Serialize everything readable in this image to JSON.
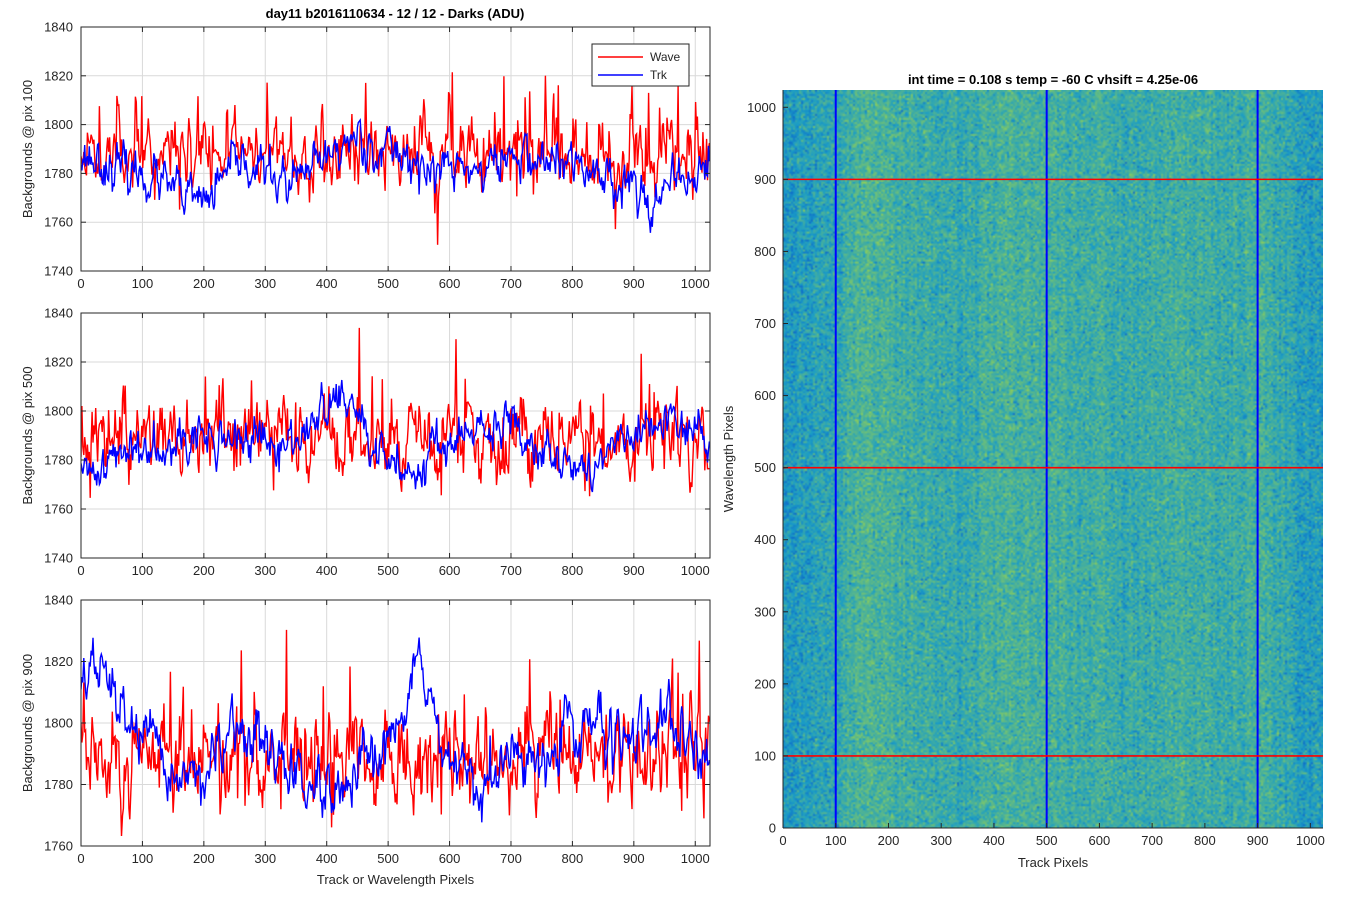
{
  "chart_data": [
    {
      "type": "line",
      "title": "day11 b2016110634 - 12 / 12 - Darks (ADU)",
      "xlabel": "",
      "ylabel": "Backgrounds @ pix 100",
      "xlim": [
        0,
        1024
      ],
      "ylim": [
        1740,
        1840
      ],
      "xticks": [
        "0",
        "100",
        "200",
        "300",
        "400",
        "500",
        "600",
        "700",
        "800",
        "900",
        "1000"
      ],
      "yticks": [
        "1740",
        "1760",
        "1780",
        "1800",
        "1820",
        "1840"
      ],
      "grid": true,
      "legend": {
        "location": "top-right",
        "entries": [
          "Wave",
          "Trk"
        ]
      },
      "series": [
        {
          "name": "Wave",
          "color": "#ff0000",
          "mean": 1789,
          "noise": 7,
          "spikes": 3,
          "seed": 11,
          "anchors": [
            [
              0,
              1789
            ],
            [
              1024,
              1789
            ]
          ]
        },
        {
          "name": "Trk",
          "color": "#0000ff",
          "mean": 1783,
          "noise": 4,
          "spikes": 0,
          "seed": 23,
          "anchors": [
            [
              0,
              1788
            ],
            [
              60,
              1782
            ],
            [
              120,
              1778
            ],
            [
              170,
              1770
            ],
            [
              200,
              1768
            ],
            [
              260,
              1785
            ],
            [
              300,
              1781
            ],
            [
              340,
              1775
            ],
            [
              380,
              1782
            ],
            [
              420,
              1790
            ],
            [
              450,
              1796
            ],
            [
              480,
              1790
            ],
            [
              530,
              1788
            ],
            [
              560,
              1780
            ],
            [
              600,
              1783
            ],
            [
              650,
              1781
            ],
            [
              700,
              1787
            ],
            [
              760,
              1785
            ],
            [
              820,
              1782
            ],
            [
              860,
              1779
            ],
            [
              900,
              1775
            ],
            [
              940,
              1768
            ],
            [
              980,
              1778
            ],
            [
              1024,
              1782
            ]
          ]
        }
      ]
    },
    {
      "type": "line",
      "title": "",
      "xlabel": "",
      "ylabel": "Backgrounds @ pix 500",
      "xlim": [
        0,
        1024
      ],
      "ylim": [
        1740,
        1840
      ],
      "xticks": [
        "0",
        "100",
        "200",
        "300",
        "400",
        "500",
        "600",
        "700",
        "800",
        "900",
        "1000"
      ],
      "yticks": [
        "1740",
        "1760",
        "1780",
        "1800",
        "1820",
        "1840"
      ],
      "grid": true,
      "series": [
        {
          "name": "",
          "color": "#ff0000",
          "mean": 1789,
          "noise": 7,
          "spikes": 3,
          "seed": 37,
          "anchors": [
            [
              0,
              1789
            ],
            [
              1024,
              1789
            ]
          ]
        },
        {
          "name": "",
          "color": "#0000ff",
          "mean": 1785,
          "noise": 4,
          "spikes": 0,
          "seed": 41,
          "anchors": [
            [
              0,
              1772
            ],
            [
              30,
              1778
            ],
            [
              80,
              1784
            ],
            [
              150,
              1790
            ],
            [
              200,
              1788
            ],
            [
              280,
              1789
            ],
            [
              320,
              1782
            ],
            [
              360,
              1792
            ],
            [
              420,
              1805
            ],
            [
              450,
              1800
            ],
            [
              480,
              1780
            ],
            [
              540,
              1776
            ],
            [
              580,
              1787
            ],
            [
              650,
              1790
            ],
            [
              700,
              1794
            ],
            [
              760,
              1786
            ],
            [
              800,
              1774
            ],
            [
              840,
              1780
            ],
            [
              900,
              1790
            ],
            [
              960,
              1794
            ],
            [
              1024,
              1790
            ]
          ]
        }
      ]
    },
    {
      "type": "line",
      "title": "",
      "xlabel": "Track or Wavelength Pixels",
      "ylabel": "Backgrounds @ pix 900",
      "xlim": [
        0,
        1024
      ],
      "ylim": [
        1760,
        1840
      ],
      "xticks": [
        "0",
        "100",
        "200",
        "300",
        "400",
        "500",
        "600",
        "700",
        "800",
        "900",
        "1000"
      ],
      "yticks": [
        "1760",
        "1780",
        "1800",
        "1820",
        "1840"
      ],
      "grid": true,
      "series": [
        {
          "name": "",
          "color": "#ff0000",
          "mean": 1790,
          "noise": 7,
          "spikes": 3,
          "seed": 53,
          "anchors": [
            [
              0,
              1790
            ],
            [
              1024,
              1790
            ]
          ]
        },
        {
          "name": "",
          "color": "#0000ff",
          "mean": 1790,
          "noise": 4,
          "spikes": 0,
          "seed": 67,
          "anchors": [
            [
              0,
              1815
            ],
            [
              30,
              1818
            ],
            [
              60,
              1806
            ],
            [
              100,
              1796
            ],
            [
              130,
              1786
            ],
            [
              170,
              1782
            ],
            [
              220,
              1786
            ],
            [
              250,
              1797
            ],
            [
              290,
              1795
            ],
            [
              330,
              1786
            ],
            [
              380,
              1778
            ],
            [
              410,
              1772
            ],
            [
              450,
              1782
            ],
            [
              490,
              1788
            ],
            [
              520,
              1800
            ],
            [
              545,
              1826
            ],
            [
              560,
              1812
            ],
            [
              590,
              1788
            ],
            [
              640,
              1778
            ],
            [
              690,
              1786
            ],
            [
              740,
              1789
            ],
            [
              800,
              1798
            ],
            [
              850,
              1800
            ],
            [
              900,
              1794
            ],
            [
              950,
              1798
            ],
            [
              1000,
              1792
            ],
            [
              1024,
              1786
            ]
          ]
        }
      ]
    },
    {
      "type": "heatmap",
      "title": "int time = 0.108 s   temp = -60 C   vhsift = 4.25e-06",
      "xlabel": "Track Pixels",
      "ylabel": "Wavelength Pixels",
      "xlim": [
        0,
        1024
      ],
      "ylim": [
        0,
        1024
      ],
      "xticks": [
        "0",
        "100",
        "200",
        "300",
        "400",
        "500",
        "600",
        "700",
        "800",
        "900",
        "1000"
      ],
      "yticks": [
        "0",
        "100",
        "200",
        "300",
        "400",
        "500",
        "600",
        "700",
        "800",
        "900",
        "1000"
      ],
      "colormap": "parula",
      "base_color": "#1a9cc7",
      "high_color": "#8ccd5c",
      "vertical_markers": {
        "x": [
          100,
          500,
          900
        ],
        "color": "#0000ff"
      },
      "horizontal_markers": {
        "y": [
          100,
          500,
          900
        ],
        "color": "#ff0000"
      }
    }
  ]
}
